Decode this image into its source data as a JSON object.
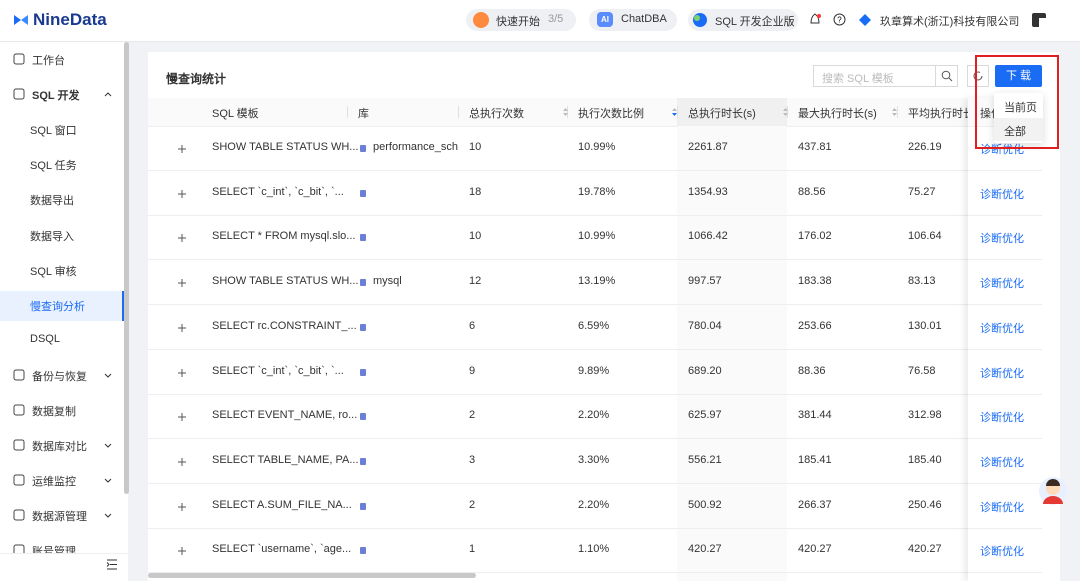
{
  "topbar": {
    "logo": "NineData",
    "quick_start": "快速开始",
    "quick_start_progress": "3/5",
    "chatdba_icon": "AI",
    "chatdba": "ChatDBA",
    "edition": "SQL 开发企业版",
    "company": "玖章算术(浙江)科技有限公司"
  },
  "sidebar": {
    "items": [
      "工作台",
      "SQL 开发",
      "SQL 窗口",
      "SQL 任务",
      "数据导出",
      "数据导入",
      "SQL 审核",
      "慢查询分析",
      "DSQL",
      "备份与恢复",
      "数据复制",
      "数据库对比",
      "运维监控",
      "数据源管理",
      "账号管理"
    ]
  },
  "panel": {
    "title": "慢查询统计",
    "search_placeholder": "搜索 SQL 模板",
    "download": "下 载",
    "download_menu": [
      "当前页",
      "全部"
    ]
  },
  "table": {
    "columns": [
      "SQL 模板",
      "库",
      "总执行次数",
      "执行次数比例",
      "总执行时长(s)",
      "最大执行时长(s)",
      "平均执行时长",
      "操作"
    ],
    "action": "诊断优化",
    "rows": [
      {
        "sql": "SHOW TABLE STATUS WH...",
        "db": "performance_sch",
        "count": "10",
        "ratio": "10.99%",
        "total": "2261.87",
        "max": "437.81",
        "avg": "226.19"
      },
      {
        "sql": "SELECT `c_int`, `c_bit`, `...",
        "count": "18",
        "ratio": "19.78%",
        "total": "1354.93",
        "max": "88.56",
        "avg": "75.27"
      },
      {
        "sql": "SELECT * FROM mysql.slo...",
        "count": "10",
        "ratio": "10.99%",
        "total": "1066.42",
        "max": "176.02",
        "avg": "106.64"
      },
      {
        "sql": "SHOW TABLE STATUS WH...",
        "db": "mysql",
        "count": "12",
        "ratio": "13.19%",
        "total": "997.57",
        "max": "183.38",
        "avg": "83.13"
      },
      {
        "sql": "SELECT rc.CONSTRAINT_...",
        "count": "6",
        "ratio": "6.59%",
        "total": "780.04",
        "max": "253.66",
        "avg": "130.01"
      },
      {
        "sql": "SELECT `c_int`, `c_bit`, `...",
        "count": "9",
        "ratio": "9.89%",
        "total": "689.20",
        "max": "88.36",
        "avg": "76.58"
      },
      {
        "sql": "SELECT EVENT_NAME, ro...",
        "count": "2",
        "ratio": "2.20%",
        "total": "625.97",
        "max": "381.44",
        "avg": "312.98"
      },
      {
        "sql": "SELECT TABLE_NAME, PA...",
        "count": "3",
        "ratio": "3.30%",
        "total": "556.21",
        "max": "185.41",
        "avg": "185.40"
      },
      {
        "sql": "SELECT A.SUM_FILE_NA...",
        "count": "2",
        "ratio": "2.20%",
        "total": "500.92",
        "max": "266.37",
        "avg": "250.46"
      },
      {
        "sql": "SELECT `username`, `age...",
        "count": "1",
        "ratio": "1.10%",
        "total": "420.27",
        "max": "420.27",
        "avg": "420.27"
      }
    ]
  }
}
